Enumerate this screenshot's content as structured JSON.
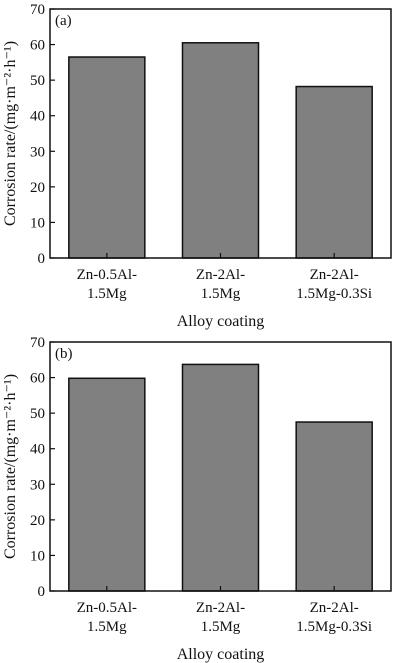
{
  "chart_data": [
    {
      "type": "bar",
      "panel_label": "(a)",
      "categories": [
        [
          "Zn-0.5Al-",
          "1.5Mg"
        ],
        [
          "Zn-2Al-",
          "1.5Mg"
        ],
        [
          "Zn-2Al-",
          "1.5Mg-0.3Si"
        ]
      ],
      "values": [
        56.5,
        60.5,
        48.2
      ],
      "xlabel": "Alloy coating",
      "ylabel": "Corrosion rate/(mg·m⁻²·h⁻¹)",
      "ylim": [
        0,
        70
      ],
      "yticks": [
        0,
        10,
        20,
        30,
        40,
        50,
        60,
        70
      ],
      "bar_color": "#808080",
      "grid": false
    },
    {
      "type": "bar",
      "panel_label": "(b)",
      "categories": [
        [
          "Zn-0.5Al-",
          "1.5Mg"
        ],
        [
          "Zn-2Al-",
          "1.5Mg"
        ],
        [
          "Zn-2Al-",
          "1.5Mg-0.3Si"
        ]
      ],
      "values": [
        59.8,
        63.7,
        47.5
      ],
      "xlabel": "Alloy coating",
      "ylabel": "Corrosion rate/(mg·m⁻²·h⁻¹)",
      "ylim": [
        0,
        70
      ],
      "yticks": [
        0,
        10,
        20,
        30,
        40,
        50,
        60,
        70
      ],
      "bar_color": "#808080",
      "grid": false
    }
  ]
}
